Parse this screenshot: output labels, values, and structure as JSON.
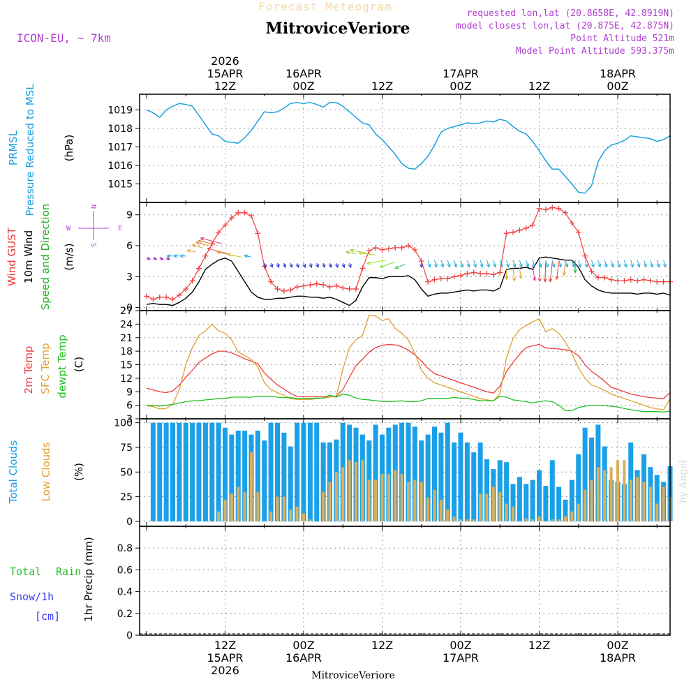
{
  "header": {
    "subtitle": "Forecast Meteogram",
    "station": "MitroviceVeriore",
    "model": "ICON-EU, ~ 7km",
    "requested": "requested lon,lat (20.8658E, 42.8919N)",
    "closest": "model closest lon,lat (20.875E, 42.875N)",
    "point_alt": "Point Altitude 521m",
    "model_alt": "Model Point Altitude 593.375m",
    "year": "2026",
    "footer_station": "MitroviceVeriore",
    "watermark": "by Angel"
  },
  "time_axis": {
    "start": "2026-04-15 00Z",
    "step_hours": 1,
    "top_ticks": [
      {
        "hour": 12,
        "lines": [
          "2026",
          "15APR",
          "12Z"
        ]
      },
      {
        "hour": 24,
        "lines": [
          "16APR",
          "00Z"
        ]
      },
      {
        "hour": 36,
        "lines": [
          "12Z"
        ]
      },
      {
        "hour": 48,
        "lines": [
          "17APR",
          "00Z"
        ]
      },
      {
        "hour": 60,
        "lines": [
          "12Z"
        ]
      },
      {
        "hour": 72,
        "lines": [
          "18APR",
          "00Z"
        ]
      }
    ],
    "bottom_ticks": [
      {
        "hour": 12,
        "lines": [
          "12Z",
          "15APR",
          "2026"
        ]
      },
      {
        "hour": 24,
        "lines": [
          "00Z",
          "16APR"
        ]
      },
      {
        "hour": 36,
        "lines": [
          "12Z"
        ]
      },
      {
        "hour": 48,
        "lines": [
          "00Z",
          "17APR"
        ]
      },
      {
        "hour": 60,
        "lines": [
          "12Z"
        ]
      },
      {
        "hour": 72,
        "lines": [
          "00Z",
          "18APR"
        ]
      }
    ]
  },
  "colors": {
    "pressure": "#1aa0e0",
    "gust": "#f03c3c",
    "wind": "#000000",
    "direction": "#20b020",
    "temp2m": "#f03c3c",
    "sfc": "#e0a030",
    "dewpt": "#20c020",
    "total_clouds": "#1aa0e8",
    "low_clouds": "#d8b060",
    "rain": "#20c020",
    "snow": "#3a3af0",
    "meta": "#b040d0",
    "compass": "#b040d0"
  },
  "chart_data": [
    {
      "type": "line",
      "name": "pressure",
      "labels": {
        "l1": "PRMSL",
        "l2": "Pressure Reduced to MSL",
        "unit": "(hPa)"
      },
      "ylim": [
        1014,
        1019.85
      ],
      "yticks": [
        1015,
        1016,
        1017,
        1018,
        1019
      ],
      "series": [
        {
          "name": "PRMSL",
          "values": [
            1019.0,
            1018.85,
            1018.6,
            1019.0,
            1019.2,
            1019.35,
            1019.3,
            1019.2,
            1018.7,
            1018.2,
            1017.7,
            1017.6,
            1017.3,
            1017.25,
            1017.2,
            1017.5,
            1017.9,
            1018.4,
            1018.9,
            1018.85,
            1018.9,
            1019.1,
            1019.35,
            1019.4,
            1019.35,
            1019.4,
            1019.3,
            1019.15,
            1019.4,
            1019.4,
            1019.2,
            1018.9,
            1018.6,
            1018.3,
            1018.2,
            1017.7,
            1017.4,
            1017.0,
            1016.6,
            1016.1,
            1015.85,
            1015.8,
            1016.1,
            1016.5,
            1017.1,
            1017.8,
            1018.0,
            1018.1,
            1018.2,
            1018.3,
            1018.25,
            1018.3,
            1018.4,
            1018.35,
            1018.5,
            1018.4,
            1018.1,
            1017.85,
            1017.7,
            1017.3,
            1016.8,
            1016.25,
            1015.8,
            1015.8,
            1015.4,
            1015.0,
            1014.55,
            1014.5,
            1014.9,
            1016.2,
            1016.8,
            1017.1,
            1017.2,
            1017.35,
            1017.6,
            1017.55,
            1017.5,
            1017.45,
            1017.3,
            1017.4,
            1017.6
          ]
        }
      ]
    },
    {
      "type": "line",
      "name": "wind",
      "labels": {
        "gust": "Wind GUST",
        "wind": "10m Wind",
        "dir": "Speed and Direction",
        "unit": "(m/s)"
      },
      "compass": {
        "n": "N",
        "s": "S",
        "w": "W",
        "e": "E"
      },
      "ylim": [
        -0.3,
        10.2
      ],
      "yticks": [
        0,
        3,
        6,
        9
      ],
      "series": [
        {
          "name": "Wind GUST",
          "values": [
            1.1,
            0.8,
            1.0,
            1.0,
            0.8,
            1.2,
            1.8,
            2.6,
            3.8,
            5.0,
            6.2,
            7.3,
            8.0,
            8.7,
            9.2,
            9.2,
            8.9,
            7.2,
            4.0,
            2.5,
            1.8,
            1.6,
            1.7,
            2.0,
            2.1,
            2.2,
            2.3,
            2.2,
            2.0,
            2.1,
            1.9,
            1.8,
            1.8,
            3.8,
            5.5,
            5.8,
            5.6,
            5.7,
            5.8,
            5.8,
            6.0,
            5.6,
            4.5,
            2.5,
            2.7,
            2.8,
            2.8,
            3.0,
            3.1,
            3.3,
            3.4,
            3.3,
            3.3,
            3.2,
            3.4,
            7.2,
            7.3,
            7.5,
            7.7,
            8.0,
            9.6,
            9.5,
            9.7,
            9.6,
            9.2,
            8.2,
            7.3,
            5.0,
            3.5,
            2.9,
            2.9,
            2.7,
            2.6,
            2.6,
            2.7,
            2.6,
            2.7,
            2.6,
            2.5,
            2.5,
            2.5
          ]
        },
        {
          "name": "10m Wind",
          "values": [
            0.3,
            0.4,
            0.3,
            0.3,
            0.2,
            0.5,
            0.9,
            1.5,
            2.5,
            3.7,
            4.2,
            4.6,
            4.8,
            4.5,
            3.5,
            2.5,
            1.5,
            1.0,
            0.8,
            0.8,
            0.9,
            0.9,
            1.0,
            1.1,
            1.1,
            1.0,
            1.0,
            0.9,
            1.0,
            0.8,
            0.5,
            0.2,
            0.7,
            2.0,
            2.9,
            2.9,
            2.8,
            3.0,
            3.0,
            3.0,
            3.1,
            2.7,
            1.8,
            1.1,
            1.3,
            1.4,
            1.4,
            1.5,
            1.6,
            1.7,
            1.6,
            1.7,
            1.7,
            1.6,
            1.9,
            3.7,
            3.8,
            3.8,
            3.9,
            3.7,
            4.8,
            4.9,
            4.8,
            4.7,
            4.6,
            4.6,
            3.9,
            2.7,
            2.1,
            1.7,
            1.5,
            1.4,
            1.4,
            1.4,
            1.4,
            1.3,
            1.4,
            1.4,
            1.3,
            1.4,
            1.2
          ]
        }
      ]
    },
    {
      "type": "line",
      "name": "temperature",
      "labels": {
        "t2m": "2m Temp",
        "sfc": "SFC Temp",
        "dew": "dewpt Temp",
        "unit": "(C)"
      },
      "ylim": [
        3,
        27
      ],
      "yticks": [
        3,
        6,
        9,
        12,
        15,
        18,
        21,
        24,
        27
      ],
      "series": [
        {
          "name": "2m Temp",
          "values": [
            9.8,
            9.4,
            9.0,
            8.8,
            9.2,
            10.5,
            12.2,
            13.8,
            15.5,
            16.5,
            17.4,
            18.0,
            18.0,
            17.6,
            17.0,
            16.3,
            15.8,
            15.2,
            13.2,
            11.8,
            10.5,
            9.6,
            8.6,
            8.0,
            7.9,
            7.9,
            7.9,
            7.9,
            7.9,
            8.0,
            9.5,
            12.2,
            14.8,
            16.2,
            17.8,
            18.8,
            19.3,
            19.5,
            19.4,
            19.0,
            18.2,
            17.2,
            15.8,
            14.2,
            13.0,
            12.5,
            12.0,
            11.5,
            11.0,
            10.5,
            10.0,
            9.5,
            9.0,
            8.7,
            10.2,
            13.5,
            15.5,
            17.3,
            18.8,
            19.2,
            19.5,
            18.7,
            18.6,
            18.5,
            18.3,
            18.0,
            17.0,
            15.0,
            13.5,
            12.5,
            11.3,
            10.0,
            9.5,
            9.0,
            8.5,
            8.2,
            7.9,
            7.7,
            7.6,
            7.5,
            8.8
          ]
        },
        {
          "name": "SFC Temp",
          "values": [
            5.9,
            5.7,
            5.2,
            5.3,
            6.2,
            9.5,
            15.0,
            18.8,
            21.5,
            22.5,
            24.0,
            22.5,
            22.0,
            20.5,
            17.8,
            17.0,
            16.2,
            14.5,
            11.0,
            9.5,
            8.8,
            8.2,
            7.5,
            7.3,
            7.3,
            7.3,
            7.5,
            7.6,
            7.8,
            8.0,
            14.0,
            18.8,
            20.5,
            21.5,
            26.0,
            25.8,
            24.8,
            25.2,
            23.0,
            22.0,
            20.5,
            17.5,
            13.8,
            12.0,
            11.0,
            10.5,
            10.0,
            9.5,
            9.0,
            8.5,
            8.0,
            7.5,
            7.2,
            7.0,
            8.5,
            16.5,
            20.8,
            22.8,
            23.7,
            24.5,
            25.2,
            22.3,
            23.0,
            22.0,
            20.0,
            17.5,
            14.3,
            12.0,
            10.5,
            10.0,
            9.3,
            8.5,
            8.0,
            7.5,
            7.0,
            6.5,
            6.0,
            5.5,
            5.2,
            5.0,
            7.5
          ]
        },
        {
          "name": "dewpt Temp",
          "values": [
            6.0,
            6.0,
            5.8,
            6.0,
            6.2,
            6.5,
            6.8,
            7.0,
            7.0,
            7.2,
            7.3,
            7.5,
            7.5,
            7.8,
            7.8,
            7.8,
            7.8,
            8.0,
            8.0,
            8.0,
            7.8,
            7.7,
            7.7,
            7.5,
            7.5,
            7.5,
            7.6,
            7.6,
            8.3,
            7.8,
            8.5,
            8.2,
            7.6,
            7.3,
            7.2,
            7.0,
            6.9,
            6.8,
            6.9,
            7.0,
            6.8,
            6.8,
            7.0,
            7.5,
            7.5,
            7.5,
            7.5,
            7.8,
            7.5,
            7.5,
            7.3,
            7.0,
            7.0,
            7.0,
            8.0,
            7.8,
            7.2,
            7.0,
            6.8,
            6.5,
            6.8,
            7.0,
            6.8,
            6.0,
            4.8,
            4.8,
            5.5,
            5.8,
            6.0,
            6.0,
            5.9,
            5.8,
            5.6,
            5.3,
            5.0,
            4.8,
            4.6,
            4.6,
            4.6,
            4.5,
            4.7
          ]
        }
      ]
    },
    {
      "type": "bar",
      "name": "clouds",
      "labels": {
        "total": "Total Clouds",
        "low": "Low Clouds",
        "unit": "(%)"
      },
      "ylim": [
        -5,
        104
      ],
      "yticks": [
        0,
        25,
        50,
        75,
        100
      ],
      "series": [
        {
          "name": "Total Clouds",
          "values": [
            98,
            100,
            100,
            100,
            100,
            100,
            100,
            100,
            100,
            100,
            100,
            100,
            95,
            88,
            92,
            92,
            88,
            92,
            82,
            100,
            100,
            90,
            76,
            100,
            100,
            100,
            100,
            80,
            80,
            83,
            100,
            98,
            95,
            88,
            82,
            98,
            88,
            95,
            98,
            100,
            100,
            96,
            82,
            88,
            96,
            90,
            100,
            80,
            90,
            80,
            70,
            80,
            63,
            53,
            62,
            60,
            38,
            45,
            38,
            42,
            52,
            36,
            62,
            35,
            22,
            42,
            68,
            95,
            85,
            98,
            76,
            42,
            40,
            38,
            80,
            52,
            68,
            55,
            47,
            40,
            56
          ]
        },
        {
          "name": "Low Clouds",
          "values": [
            0,
            0,
            0,
            0,
            0,
            0,
            0,
            0,
            0,
            0,
            0,
            10,
            22,
            28,
            35,
            30,
            70,
            30,
            0,
            10,
            25,
            25,
            12,
            15,
            8,
            2,
            0,
            30,
            40,
            50,
            55,
            62,
            60,
            62,
            42,
            42,
            48,
            48,
            52,
            48,
            40,
            42,
            40,
            24,
            32,
            22,
            12,
            5,
            2,
            2,
            2,
            28,
            28,
            35,
            30,
            18,
            15,
            0,
            3,
            2,
            5,
            0,
            2,
            2,
            5,
            10,
            18,
            32,
            42,
            55,
            52,
            55,
            62,
            62,
            42,
            45,
            40,
            35,
            18,
            35,
            25
          ]
        }
      ]
    },
    {
      "type": "line",
      "name": "precipitation",
      "labels": {
        "total": "Total",
        "rain": "Rain",
        "snow": "Snow/1h",
        "cm": "[cm]",
        "unit": "1hr Precip (mm)"
      },
      "ylim": [
        0,
        1.0
      ],
      "yticks": [
        0,
        0.2,
        0.4,
        0.6,
        0.8
      ],
      "ytick_labels": [
        "0",
        "0.2",
        "0.4",
        "0.6",
        "0.8"
      ],
      "series": [
        {
          "name": "Rain",
          "values": []
        }
      ]
    }
  ]
}
